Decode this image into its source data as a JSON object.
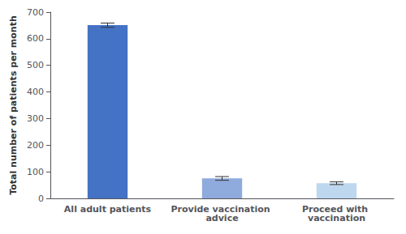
{
  "chart_data": {
    "type": "bar",
    "categories": [
      "All adult patients",
      "Provide vaccination advice",
      "Proceed with vaccination"
    ],
    "values": [
      651,
      75,
      57
    ],
    "errors": [
      8,
      7,
      5
    ],
    "colors": [
      "#4472C4",
      "#8FAADC",
      "#BDD7EE"
    ],
    "ylabel": "Total number of patients per month",
    "ylim": [
      0,
      700
    ],
    "yticks": [
      0,
      100,
      200,
      300,
      400,
      500,
      600,
      700
    ],
    "grid": false
  }
}
